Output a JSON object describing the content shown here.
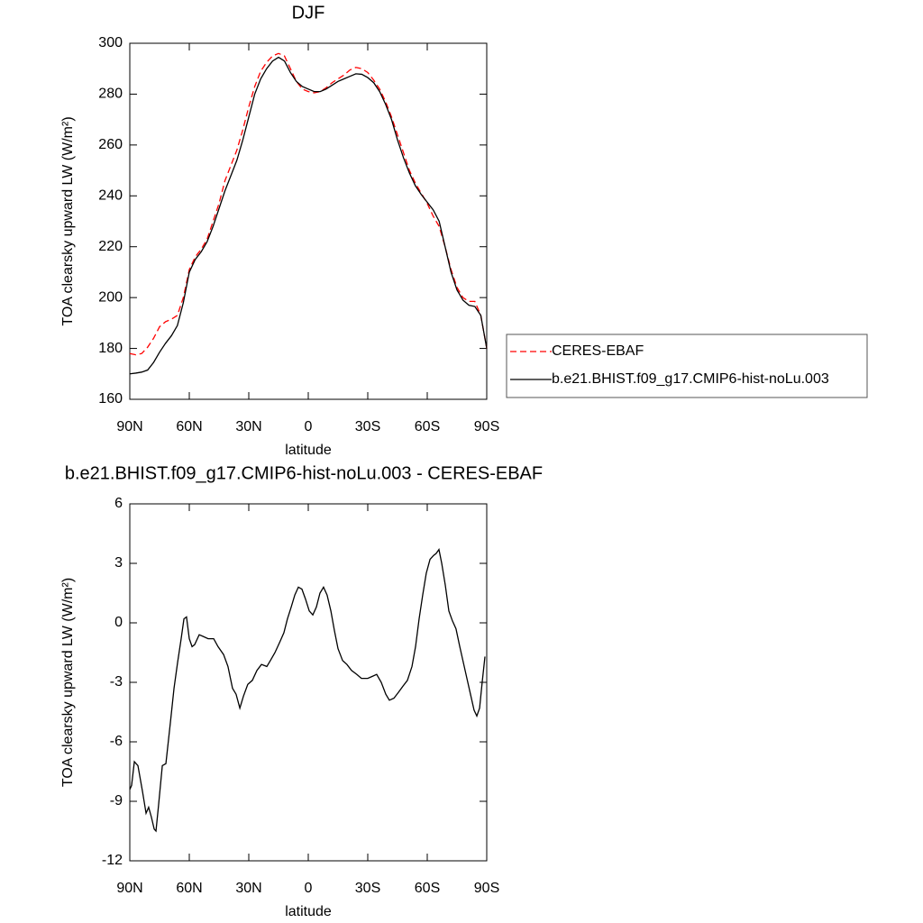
{
  "chart_data": [
    {
      "type": "line",
      "title": "DJF",
      "xlabel": "latitude",
      "ylabel": "TOA clearsky upward LW (W/m²)",
      "x": [
        90,
        87,
        84,
        81,
        78,
        75,
        72,
        69,
        66,
        63,
        60,
        57,
        54,
        51,
        48,
        45,
        42,
        39,
        36,
        33,
        30,
        27,
        24,
        21,
        18,
        15,
        12,
        9,
        6,
        3,
        0,
        -3,
        -6,
        -9,
        -12,
        -15,
        -18,
        -21,
        -24,
        -27,
        -30,
        -33,
        -36,
        -39,
        -42,
        -45,
        -48,
        -51,
        -54,
        -57,
        -60,
        -63,
        -66,
        -69,
        -72,
        -75,
        -78,
        -81,
        -84,
        -87,
        -90
      ],
      "series": [
        {
          "name": "CERES-EBAF",
          "color": "#ff0000",
          "line_style": "dashed",
          "values": [
            178,
            177.5,
            178,
            180.5,
            184,
            188.5,
            190.5,
            191.5,
            193,
            200,
            211,
            216,
            219,
            223,
            230,
            237,
            246,
            252,
            258,
            266,
            275,
            283,
            289,
            292.5,
            295,
            296,
            295,
            290,
            285,
            282,
            281,
            280.5,
            281,
            282.5,
            284.5,
            286,
            287.5,
            289.5,
            290.5,
            290,
            288.5,
            285.5,
            282,
            277,
            271,
            264,
            257,
            250,
            245,
            241,
            237,
            232,
            228,
            220,
            211,
            204,
            200,
            198.5,
            198.5,
            193,
            180
          ]
        },
        {
          "name": "b.e21.BHIST.f09_g17.CMIP6-hist-noLu.003",
          "color": "#000000",
          "line_style": "solid",
          "values": [
            170,
            170.3,
            170.7,
            171.5,
            174.5,
            178.5,
            182,
            185,
            189,
            198,
            210,
            215,
            218,
            222,
            228,
            235,
            242,
            248,
            254,
            262,
            271,
            280,
            286,
            290,
            293,
            294.5,
            293,
            288.5,
            285,
            283,
            282,
            281,
            281,
            282,
            283.5,
            285,
            286,
            287,
            288,
            287.8,
            286.5,
            284.5,
            281,
            276,
            270,
            262,
            255,
            249,
            244,
            240.5,
            237.5,
            234.5,
            230,
            220,
            210,
            203,
            199,
            197,
            196.5,
            193,
            180
          ]
        }
      ],
      "xlim": [
        90,
        -90
      ],
      "ylim": [
        160,
        300
      ],
      "xticks": [
        {
          "value": 90,
          "label": "90N"
        },
        {
          "value": 60,
          "label": "60N"
        },
        {
          "value": 30,
          "label": "30N"
        },
        0,
        {
          "value": -30,
          "label": "30S"
        },
        {
          "value": -60,
          "label": "60S"
        },
        {
          "value": -90,
          "label": "90S"
        }
      ],
      "yticks": [
        160,
        180,
        200,
        220,
        240,
        260,
        280,
        300
      ],
      "legend": "right"
    },
    {
      "type": "line",
      "title": "b.e21.BHIST.f09_g17.CMIP6-hist-noLu.003 - CERES-EBAF",
      "xlabel": "latitude",
      "ylabel": "TOA clearsky upward LW (W/m²)",
      "x": [
        90,
        89.1,
        87.7,
        85.9,
        83.6,
        81.8,
        80.5,
        79.1,
        77.7,
        76.8,
        75.5,
        73.6,
        71.8,
        69.5,
        67.7,
        65.9,
        64.1,
        62.7,
        61.4,
        60,
        58.6,
        57.3,
        55,
        52.7,
        50.5,
        47.7,
        45.5,
        42.7,
        40.5,
        38.2,
        36.4,
        34.5,
        32.7,
        30.5,
        28.2,
        25.9,
        23.6,
        20.9,
        19.1,
        16.8,
        14.5,
        12.3,
        10.5,
        8.6,
        6.8,
        5,
        3.2,
        1.4,
        -0.5,
        -2.3,
        -4.1,
        -5.9,
        -7.7,
        -9.5,
        -11.4,
        -13.2,
        -15,
        -17.3,
        -19.5,
        -21.8,
        -24.5,
        -26.8,
        -30,
        -32.3,
        -34.5,
        -36.8,
        -39.1,
        -40.9,
        -43.2,
        -45.5,
        -47.7,
        -50,
        -52.3,
        -54.1,
        -55.9,
        -57.7,
        -59.5,
        -61.4,
        -63.2,
        -64.5,
        -65.9,
        -67.3,
        -69.1,
        -70.9,
        -72.7,
        -74.5,
        -76.4,
        -78.2,
        -80,
        -81.8,
        -83.6,
        -85,
        -86.4,
        -87.7,
        -89.1
      ],
      "values": [
        -8.4,
        -8.2,
        -7,
        -7.2,
        -8.5,
        -9.6,
        -9.3,
        -9.8,
        -10.4,
        -10.5,
        -9.2,
        -7.2,
        -7.1,
        -5,
        -3.3,
        -2,
        -0.8,
        0.2,
        0.3,
        -0.8,
        -1.2,
        -1.1,
        -0.6,
        -0.7,
        -0.8,
        -0.8,
        -1.2,
        -1.6,
        -2.2,
        -3.3,
        -3.6,
        -4.3,
        -3.7,
        -3.1,
        -2.9,
        -2.4,
        -2.1,
        -2.2,
        -1.9,
        -1.5,
        -1,
        -0.5,
        0.2,
        0.8,
        1.4,
        1.8,
        1.7,
        1.2,
        0.6,
        0.4,
        0.8,
        1.5,
        1.8,
        1.4,
        0.6,
        -0.4,
        -1.3,
        -1.9,
        -2.1,
        -2.4,
        -2.6,
        -2.8,
        -2.8,
        -2.7,
        -2.6,
        -3,
        -3.6,
        -3.9,
        -3.8,
        -3.5,
        -3.2,
        -2.9,
        -2.2,
        -1.2,
        0.2,
        1.4,
        2.5,
        3.2,
        3.4,
        3.5,
        3.7,
        3,
        1.9,
        0.6,
        0.1,
        -0.3,
        -1.2,
        -2,
        -2.8,
        -3.6,
        -4.4,
        -4.7,
        -4.3,
        -3,
        -1.7
      ],
      "color": "#000000",
      "xlim": [
        90,
        -90
      ],
      "ylim": [
        -12,
        6
      ],
      "xticks": [
        {
          "value": 90,
          "label": "90N"
        },
        {
          "value": 60,
          "label": "60N"
        },
        {
          "value": 30,
          "label": "30N"
        },
        0,
        {
          "value": -30,
          "label": "30S"
        },
        {
          "value": -60,
          "label": "60S"
        },
        {
          "value": -90,
          "label": "90S"
        }
      ],
      "yticks": [
        -12,
        -9,
        -6,
        -3,
        0,
        3,
        6
      ]
    }
  ]
}
